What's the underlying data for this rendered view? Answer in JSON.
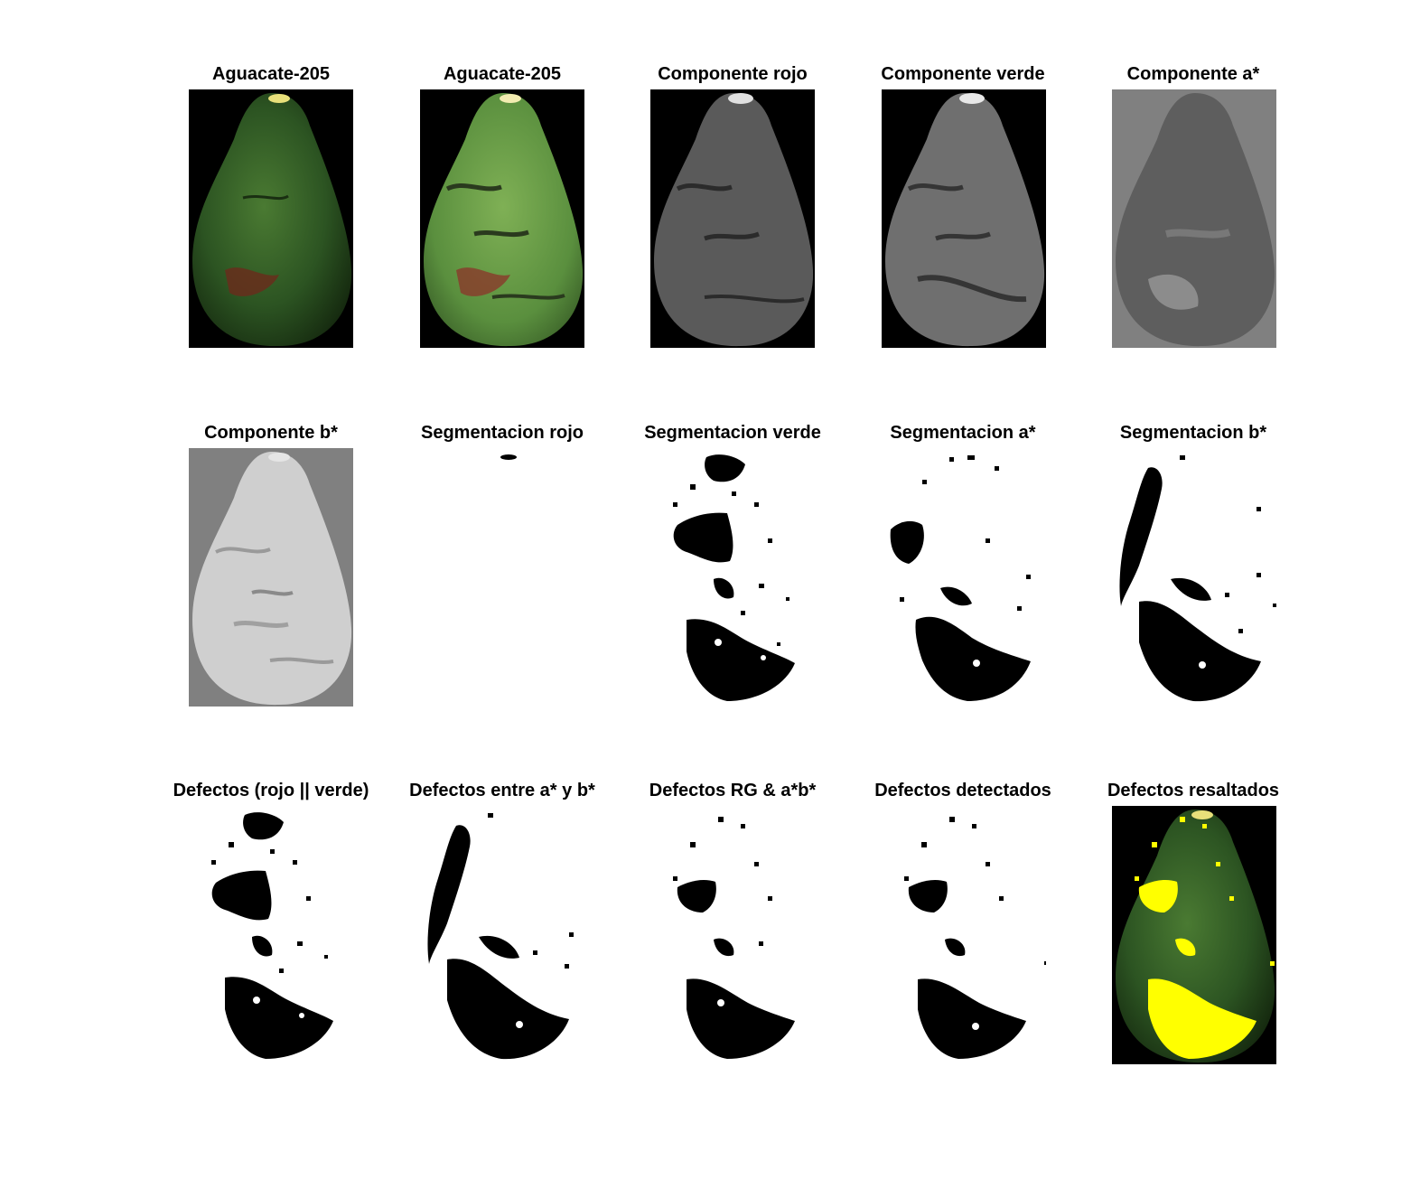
{
  "figure": {
    "panels": [
      {
        "title": "Aguacate-205",
        "kind": "rgb-original"
      },
      {
        "title": "Aguacate-205",
        "kind": "rgb-filtered"
      },
      {
        "title": "Componente rojo",
        "kind": "gray-dark"
      },
      {
        "title": "Componente verde",
        "kind": "gray-dark"
      },
      {
        "title": "Componente a*",
        "kind": "gray-mid"
      },
      {
        "title": "Componente b*",
        "kind": "gray-light"
      },
      {
        "title": "Segmentacion rojo",
        "kind": "mask-empty"
      },
      {
        "title": "Segmentacion verde",
        "kind": "mask"
      },
      {
        "title": "Segmentacion a*",
        "kind": "mask"
      },
      {
        "title": "Segmentacion b*",
        "kind": "mask"
      },
      {
        "title": "Defectos (rojo || verde)",
        "kind": "mask"
      },
      {
        "title": "Defectos entre a* y b*",
        "kind": "mask"
      },
      {
        "title": "Defectos RG & a*b*",
        "kind": "mask"
      },
      {
        "title": "Defectos detectados",
        "kind": "mask"
      },
      {
        "title": "Defectos resaltados",
        "kind": "highlight"
      }
    ],
    "colors": {
      "avocado_green": "#2f5a24",
      "highlight": "#ffff00",
      "background_black": "#000000",
      "background_gray": "#808080"
    }
  }
}
